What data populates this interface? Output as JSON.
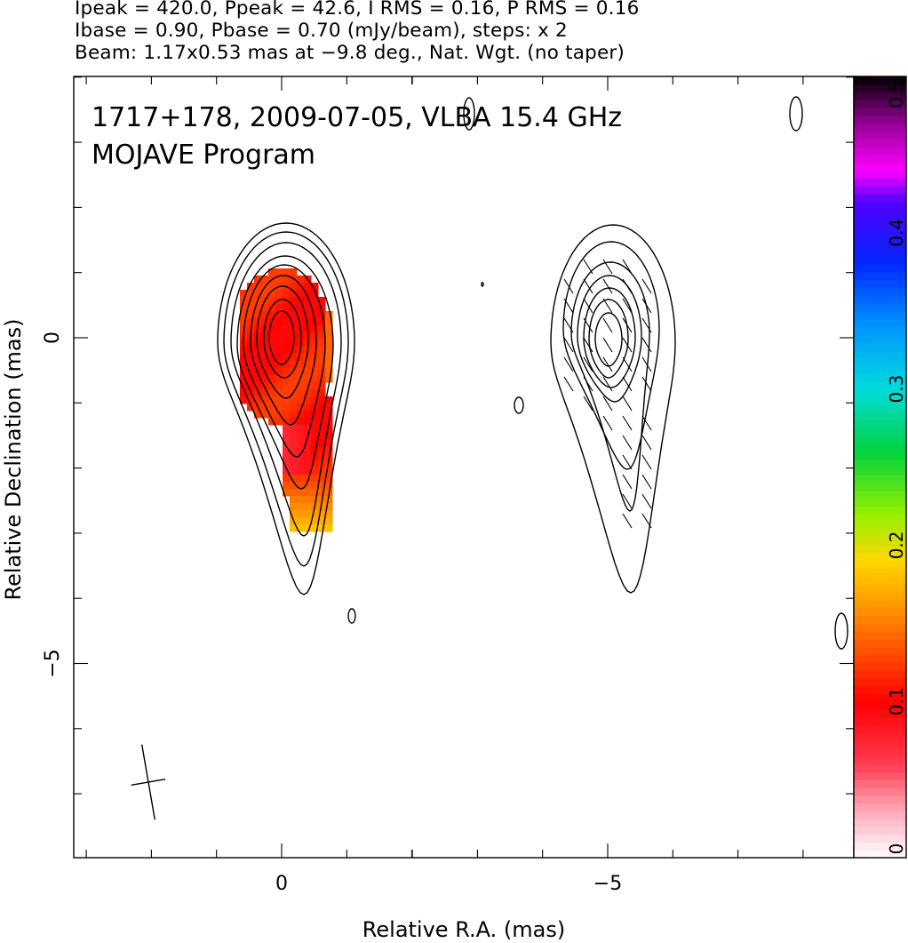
{
  "header": {
    "line1": "Ipeak = 420.0, Ppeak = 42.6, I RMS = 0.16, P RMS = 0.16",
    "line2": "Ibase = 0.90, Pbase = 0.70 (mJy/beam), steps: x 2",
    "line3": "Beam: 1.17x0.53 mas at −9.8 deg., Nat. Wgt. (no taper)"
  },
  "chart_data": [
    {
      "type": "contour",
      "panel": "Stokes I contours with fractional polarization color overlay",
      "title": "1717+178, 2009-07-05, VLBA 15.4 GHz",
      "subtitle": "MOJAVE Program",
      "xlabel": "Relative R.A. (mas)",
      "ylabel": "Relative Declination (mas)",
      "xlim": [
        3.0,
        -2.0
      ],
      "ylim": [
        -8.0,
        4.0
      ],
      "x_ticks": [
        {
          "value": 0,
          "label": "0"
        }
      ],
      "y_ticks": [
        {
          "value": 0,
          "label": "0"
        },
        {
          "value": -5,
          "label": "−5"
        }
      ],
      "core": {
        "x": 0.0,
        "y": 0.0
      },
      "contour_levels_mJy_per_beam": [
        0.9,
        1.8,
        3.6,
        7.2,
        14.4,
        28.8,
        57.6,
        115.2,
        230.4
      ],
      "colormap_range": [
        0.0,
        0.5
      ],
      "beam": {
        "major_mas": 1.17,
        "minor_mas": 0.53,
        "pa_deg": -9.8
      }
    },
    {
      "type": "contour",
      "panel": "Polarized intensity contours with EVPA ticks",
      "xlim": [
        -2.0,
        -8.5
      ],
      "x_ticks": [
        {
          "value": -5,
          "label": "−5"
        }
      ],
      "core": {
        "x": -5.0,
        "y": 0.0
      }
    }
  ],
  "colorbar": {
    "ticks": [
      {
        "value": 0,
        "label": "0"
      },
      {
        "value": 0.1,
        "label": "0.1"
      },
      {
        "value": 0.2,
        "label": "0.2"
      },
      {
        "value": 0.3,
        "label": "0.3"
      },
      {
        "value": 0.4,
        "label": "0.4"
      },
      {
        "value": 0.5,
        "label": "0.5"
      }
    ]
  }
}
